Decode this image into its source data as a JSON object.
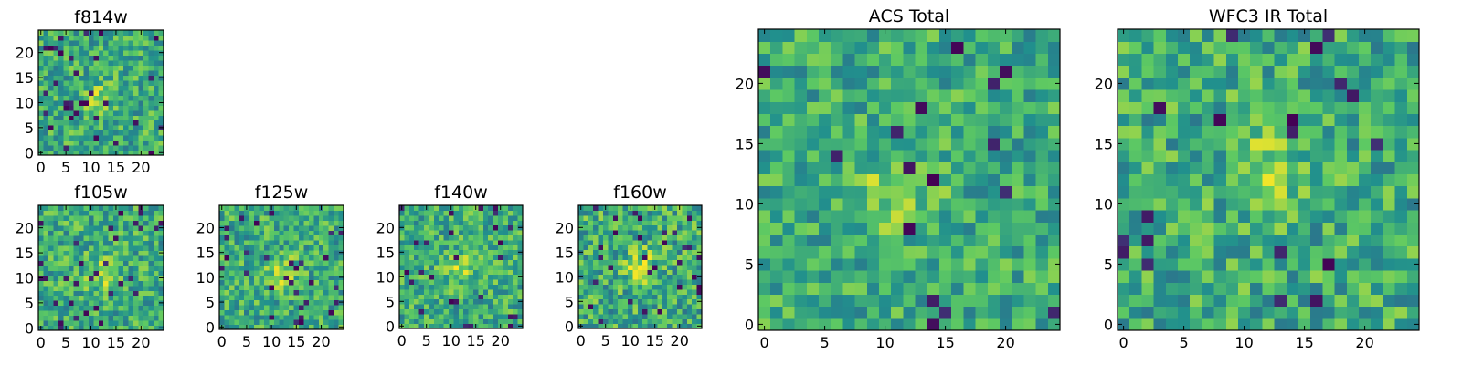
{
  "figure": {
    "background": "#ffffff"
  },
  "colormap": {
    "name": "viridis",
    "stops": [
      "#440154",
      "#3b528b",
      "#21908d",
      "#5dc963",
      "#fde725"
    ]
  },
  "chart_data": [
    {
      "type": "heatmap",
      "title": "f814w",
      "grid_size": 25,
      "xticks": [
        0,
        5,
        10,
        15,
        20
      ],
      "yticks": [
        0,
        5,
        10,
        15,
        20
      ],
      "xlim": [
        -0.5,
        24.5
      ],
      "ylim": [
        -0.5,
        24.5
      ],
      "source_peak": [
        11,
        11
      ],
      "peak_strength": 0.18,
      "noise": 0.22,
      "dark_pixel_rate": 0.05,
      "seed": 11
    },
    {
      "type": "heatmap",
      "title": "f105w",
      "grid_size": 25,
      "xticks": [
        0,
        5,
        10,
        15,
        20
      ],
      "yticks": [
        0,
        5,
        10,
        15,
        20
      ],
      "xlim": [
        -0.5,
        24.5
      ],
      "ylim": [
        -0.5,
        24.5
      ],
      "source_peak": [
        12,
        11
      ],
      "peak_strength": 0.25,
      "noise": 0.22,
      "dark_pixel_rate": 0.05,
      "seed": 23
    },
    {
      "type": "heatmap",
      "title": "f125w",
      "grid_size": 25,
      "xticks": [
        0,
        5,
        10,
        15,
        20
      ],
      "yticks": [
        0,
        5,
        10,
        15,
        20
      ],
      "xlim": [
        -0.5,
        24.5
      ],
      "ylim": [
        -0.5,
        24.5
      ],
      "source_peak": [
        12,
        11
      ],
      "peak_strength": 0.25,
      "noise": 0.22,
      "dark_pixel_rate": 0.04,
      "seed": 37
    },
    {
      "type": "heatmap",
      "title": "f140w",
      "grid_size": 25,
      "xticks": [
        0,
        5,
        10,
        15,
        20
      ],
      "yticks": [
        0,
        5,
        10,
        15,
        20
      ],
      "xlim": [
        -0.5,
        24.5
      ],
      "ylim": [
        -0.5,
        24.5
      ],
      "source_peak": [
        12,
        12
      ],
      "peak_strength": 0.25,
      "noise": 0.22,
      "dark_pixel_rate": 0.04,
      "seed": 41
    },
    {
      "type": "heatmap",
      "title": "f160w",
      "grid_size": 25,
      "xticks": [
        0,
        5,
        10,
        15,
        20
      ],
      "yticks": [
        0,
        5,
        10,
        15,
        20
      ],
      "xlim": [
        -0.5,
        24.5
      ],
      "ylim": [
        -0.5,
        24.5
      ],
      "source_peak": [
        12,
        12
      ],
      "peak_strength": 0.32,
      "noise": 0.24,
      "dark_pixel_rate": 0.05,
      "seed": 53
    },
    {
      "type": "heatmap",
      "title": "ACS Total",
      "grid_size": 25,
      "xticks": [
        0,
        5,
        10,
        15,
        20
      ],
      "yticks": [
        0,
        5,
        10,
        15,
        20
      ],
      "xlim": [
        -0.5,
        24.5
      ],
      "ylim": [
        -0.5,
        24.5
      ],
      "source_peak": [
        11,
        11
      ],
      "peak_strength": 0.22,
      "noise": 0.2,
      "dark_pixel_rate": 0.025,
      "seed": 67
    },
    {
      "type": "heatmap",
      "title": "WFC3 IR Total",
      "grid_size": 25,
      "xticks": [
        0,
        5,
        10,
        15,
        20
      ],
      "yticks": [
        0,
        5,
        10,
        15,
        20
      ],
      "xlim": [
        -0.5,
        24.5
      ],
      "ylim": [
        -0.5,
        24.5
      ],
      "source_peak": [
        12,
        13
      ],
      "peak_strength": 0.2,
      "noise": 0.22,
      "dark_pixel_rate": 0.03,
      "seed": 79
    }
  ]
}
